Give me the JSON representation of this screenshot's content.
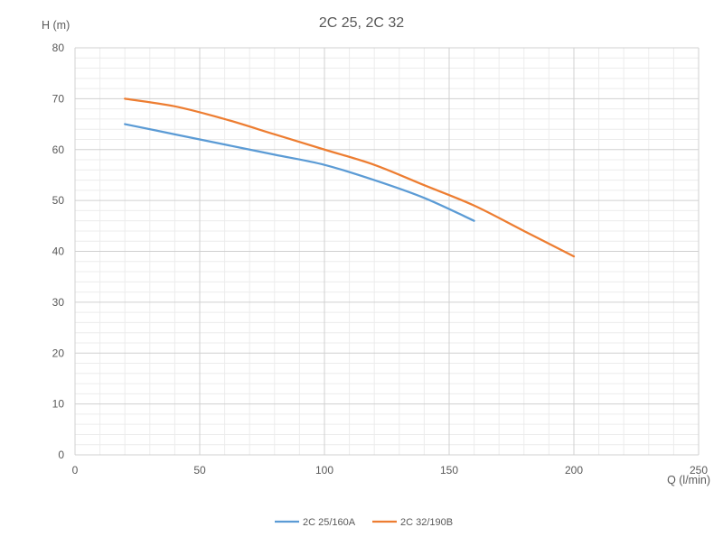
{
  "chart_data": {
    "type": "line",
    "title": "2C 25, 2C 32",
    "xlabel": "Q (l/min)",
    "ylabel": "H (m)",
    "xlim": [
      0,
      250
    ],
    "ylim": [
      0,
      80
    ],
    "x_major_ticks": [
      0,
      50,
      100,
      150,
      200,
      250
    ],
    "y_major_ticks": [
      0,
      10,
      20,
      30,
      40,
      50,
      60,
      70,
      80
    ],
    "x_tick_labels": [
      "0",
      "50",
      "100",
      "150",
      "200",
      "250"
    ],
    "y_tick_labels": [
      "0",
      "10",
      "20",
      "30",
      "40",
      "50",
      "60",
      "70",
      "80"
    ],
    "grid": true,
    "legend_position": "bottom",
    "series": [
      {
        "name": "2C 25/160A",
        "color": "#5B9BD5",
        "x": [
          20,
          40,
          60,
          80,
          100,
          120,
          140,
          160
        ],
        "y": [
          65,
          63,
          61,
          59,
          57,
          54,
          50.5,
          46
        ]
      },
      {
        "name": "2C 32/190B",
        "color": "#ED7D31",
        "x": [
          20,
          40,
          60,
          80,
          100,
          120,
          140,
          160,
          180,
          200
        ],
        "y": [
          70,
          68.5,
          66,
          63,
          60,
          57,
          53,
          49,
          44,
          39
        ]
      }
    ]
  }
}
